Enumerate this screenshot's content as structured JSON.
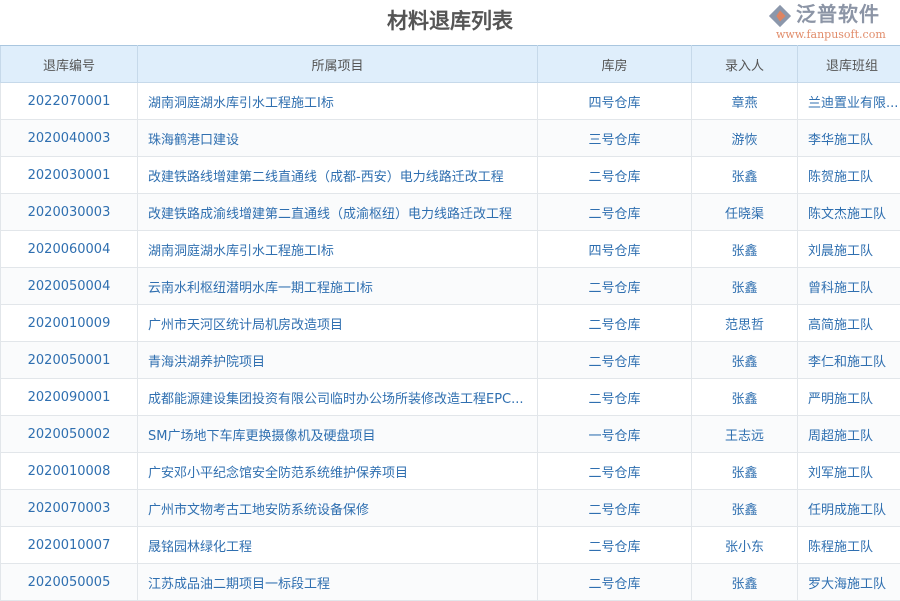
{
  "title": "材料退库列表",
  "columns": [
    "退库编号",
    "所属项目",
    "库房",
    "录入人",
    "退库班组"
  ],
  "rows": [
    [
      "2022070001",
      "湖南洞庭湖水库引水工程施工I标",
      "四号仓库",
      "章燕",
      "兰迪置业有限..."
    ],
    [
      "2020040003",
      "珠海鹤港口建设",
      "三号仓库",
      "游恢",
      "李华施工队"
    ],
    [
      "2020030001",
      "改建铁路线增建第二线直通线（成都-西安）电力线路迁改工程",
      "二号仓库",
      "张鑫",
      "陈贺施工队"
    ],
    [
      "2020030003",
      "改建铁路成渝线增建第二直通线（成渝枢纽）电力线路迁改工程",
      "二号仓库",
      "任晓渠",
      "陈文杰施工队"
    ],
    [
      "2020060004",
      "湖南洞庭湖水库引水工程施工I标",
      "四号仓库",
      "张鑫",
      "刘晨施工队"
    ],
    [
      "2020050004",
      "云南水利枢纽潜明水库一期工程施工I标",
      "二号仓库",
      "张鑫",
      "曾科施工队"
    ],
    [
      "2020010009",
      "广州市天河区统计局机房改造项目",
      "二号仓库",
      "范思哲",
      "高简施工队"
    ],
    [
      "2020050001",
      "青海洪湖养护院项目",
      "二号仓库",
      "张鑫",
      "李仁和施工队"
    ],
    [
      "2020090001",
      "成都能源建设集团投资有限公司临时办公场所装修改造工程EPC...",
      "二号仓库",
      "张鑫",
      "严明施工队"
    ],
    [
      "2020050002",
      "SM广场地下车库更换摄像机及硬盘项目",
      "一号仓库",
      "王志远",
      "周超施工队"
    ],
    [
      "2020010008",
      "广安邓小平纪念馆安全防范系统维护保养项目",
      "二号仓库",
      "张鑫",
      "刘军施工队"
    ],
    [
      "2020070003",
      "广州市文物考古工地安防系统设备保修",
      "二号仓库",
      "张鑫",
      "任明成施工队"
    ],
    [
      "2020010007",
      "晟铭园林绿化工程",
      "二号仓库",
      "张小东",
      "陈程施工队"
    ],
    [
      "2020050005",
      "江苏成品油二期项目一标段工程",
      "二号仓库",
      "张鑫",
      "罗大海施工队"
    ]
  ],
  "watermark": {
    "name": "泛普软件",
    "url": "www.fanpusoft.com"
  },
  "colors": {
    "header_bg": "#dfeefb",
    "link_text": "#2f6fb0"
  }
}
